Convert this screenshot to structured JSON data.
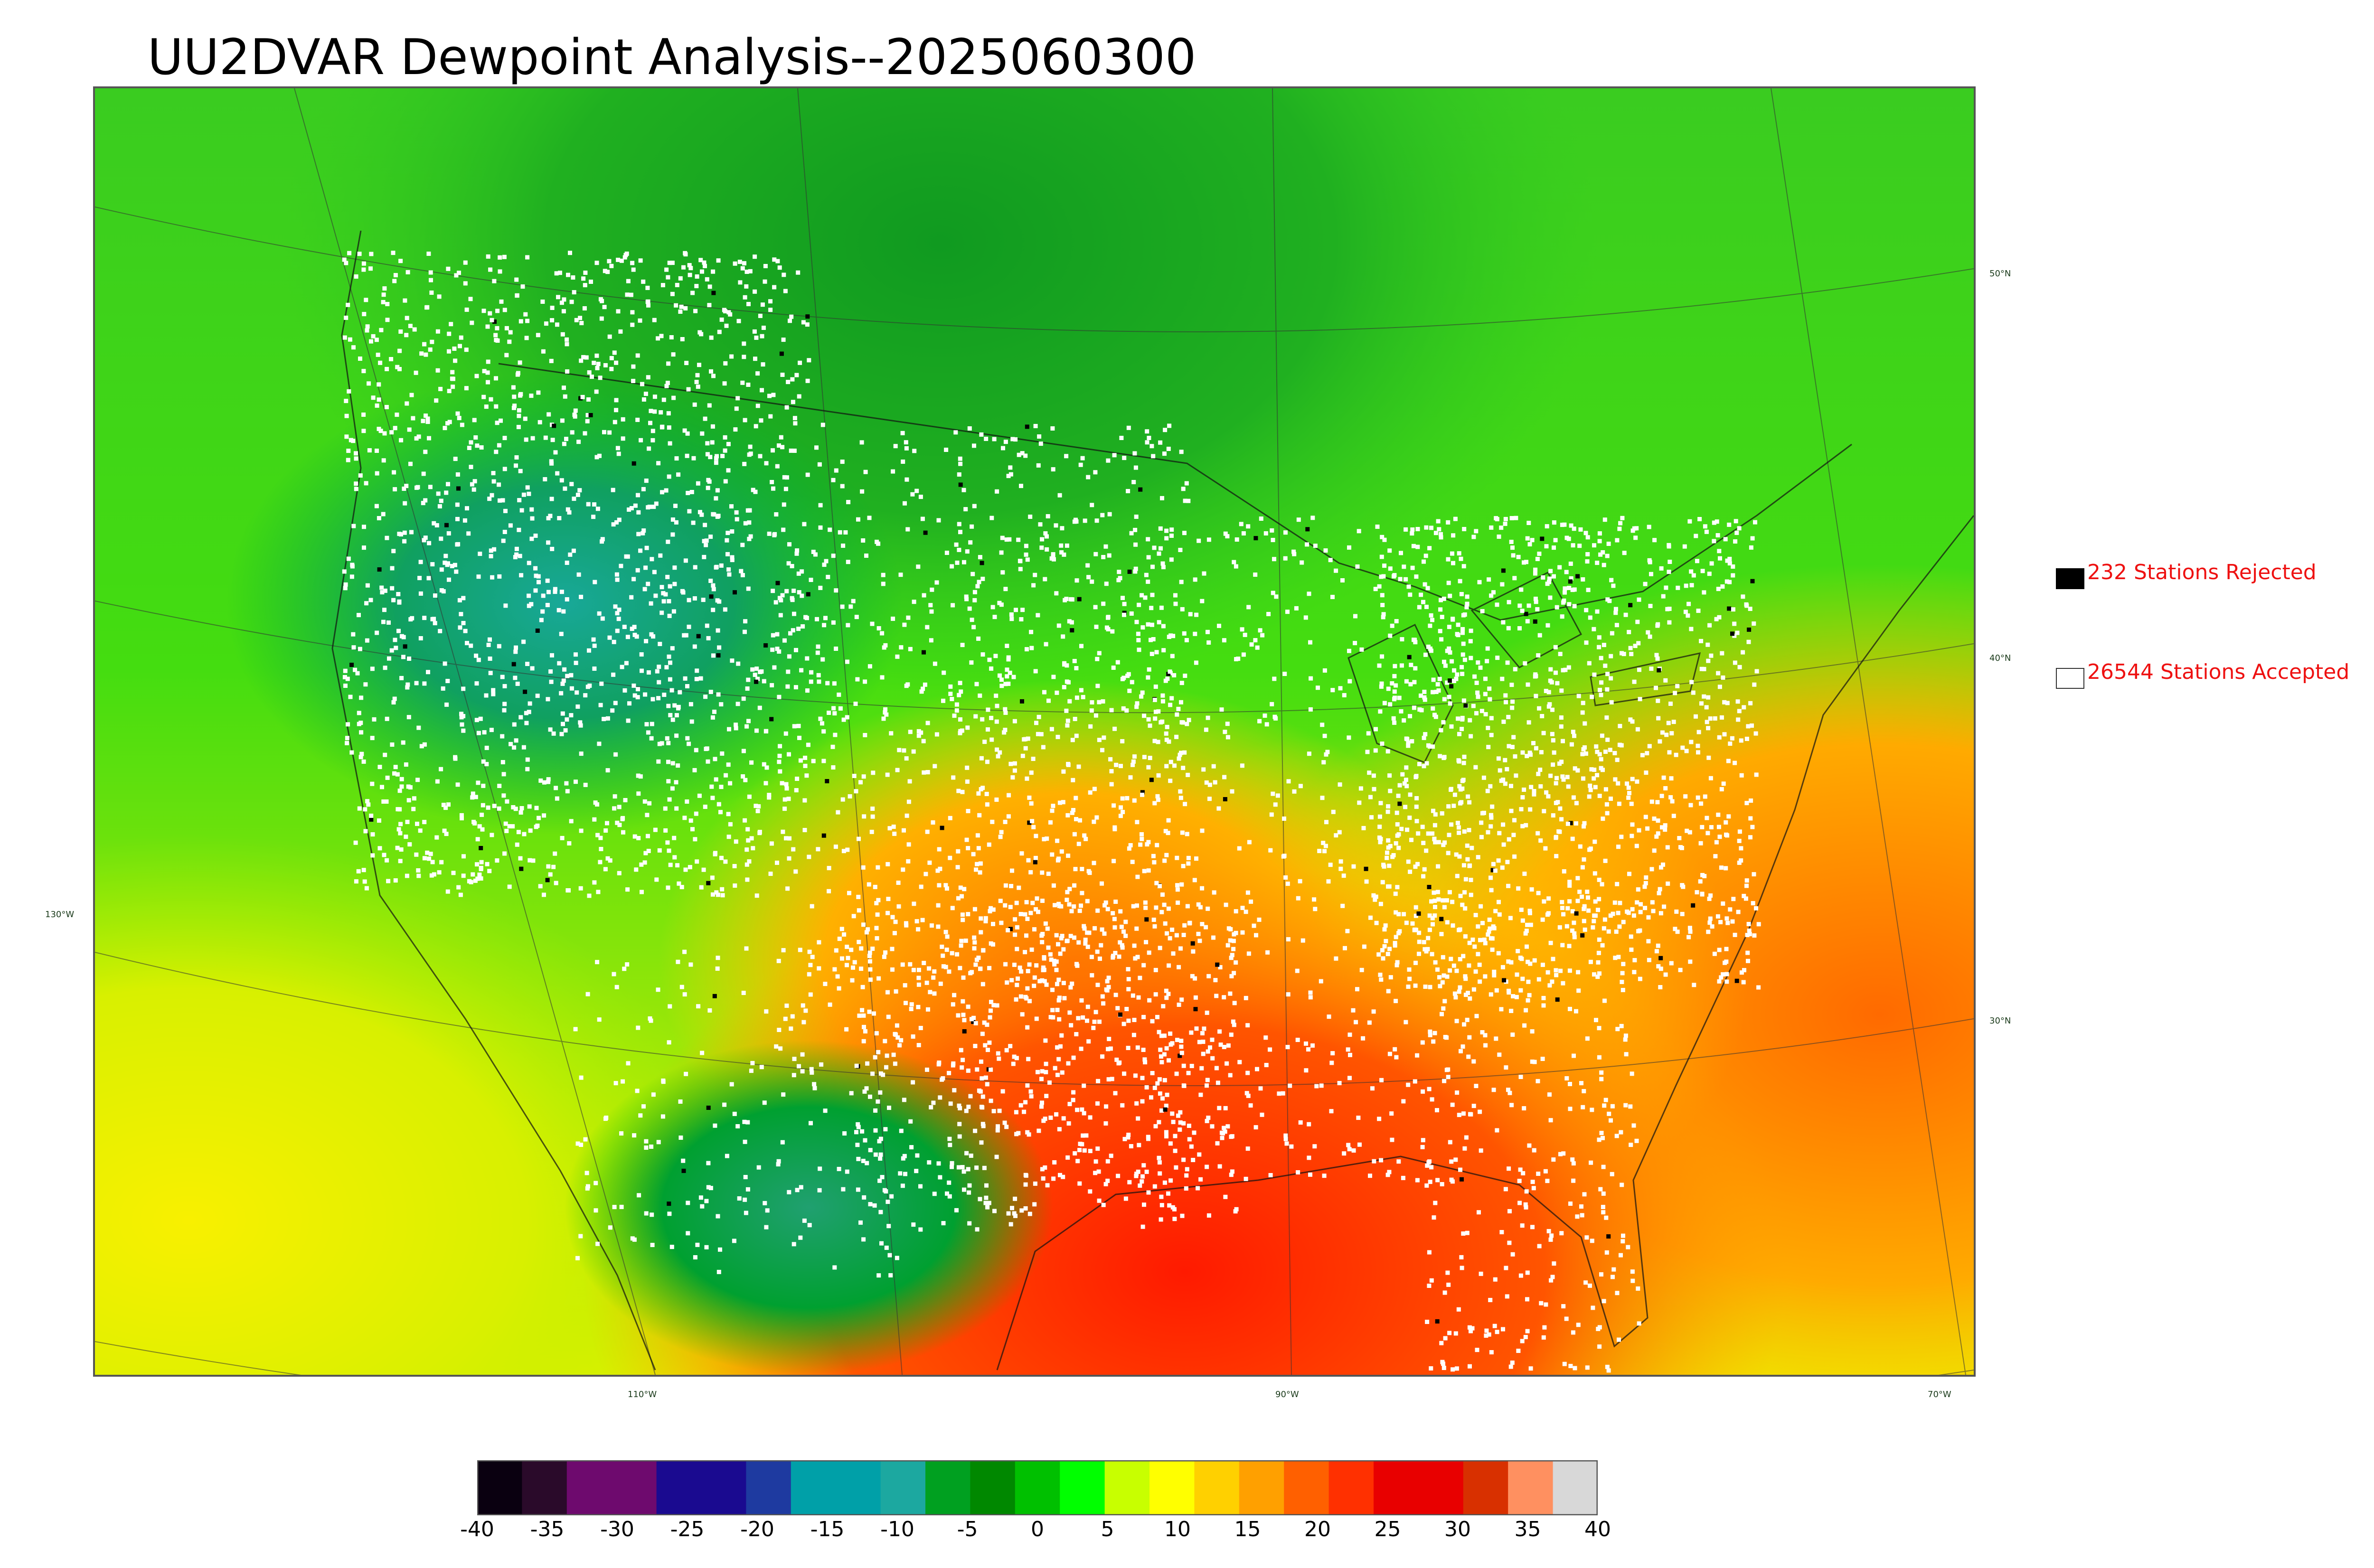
{
  "title": "UU2DVAR Dewpoint Analysis--2025060300",
  "legend": {
    "rejected": {
      "label": "232 Stations Rejected",
      "color": "#000000"
    },
    "accepted": {
      "label": "26544 Stations Accepted",
      "color": "#ffffff"
    }
  },
  "lat_labels": [
    "50°N",
    "40°N",
    "30°N"
  ],
  "lon_labels": [
    "130°W",
    "110°W",
    "90°W",
    "70°W"
  ],
  "colorbar": {
    "ticks": [
      "-40",
      "-35",
      "-30",
      "-25",
      "-20",
      "-15",
      "-10",
      "-5",
      "0",
      "5",
      "10",
      "15",
      "20",
      "25",
      "30",
      "35",
      "40"
    ],
    "range": [
      -40,
      40
    ],
    "colors": [
      "#0a0010",
      "#2a0a2a",
      "#6e0a6e",
      "#6e0a6e",
      "#1a0a90",
      "#1a0a90",
      "#1e3aa0",
      "#00a0a8",
      "#00a0a8",
      "#1ca8a0",
      "#00a020",
      "#008800",
      "#00c000",
      "#00ff00",
      "#c8ff00",
      "#ffff00",
      "#ffd000",
      "#ffa000",
      "#ff6000",
      "#ff3000",
      "#e80000",
      "#e80000",
      "#d83000",
      "#ff9060",
      "#d8d8d8"
    ]
  }
}
